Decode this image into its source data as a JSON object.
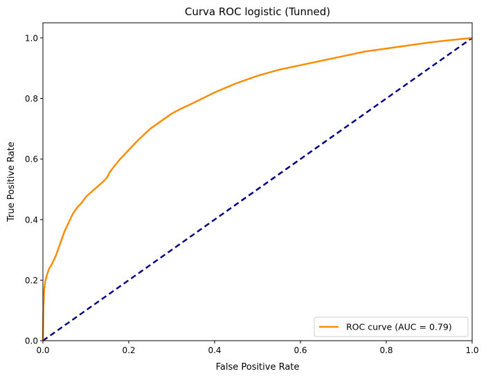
{
  "chart_data": {
    "type": "line",
    "title": "Curva ROC logistic (Tunned)",
    "xlabel": "False Positive Rate",
    "ylabel": "True Positive Rate",
    "xlim": [
      0.0,
      1.0
    ],
    "ylim": [
      0.0,
      1.05
    ],
    "xticks": [
      "0.0",
      "0.2",
      "0.4",
      "0.6",
      "0.8",
      "1.0"
    ],
    "yticks": [
      "0.0",
      "0.2",
      "0.4",
      "0.6",
      "0.8",
      "1.0"
    ],
    "grid": false,
    "legend_position": "lower-right",
    "series": [
      {
        "name": "ROC curve (AUC = 0.79)",
        "color": "#ff8c00",
        "style": "solid",
        "x": [
          0.0,
          0.001,
          0.003,
          0.006,
          0.01,
          0.015,
          0.02,
          0.03,
          0.04,
          0.05,
          0.06,
          0.07,
          0.08,
          0.09,
          0.1,
          0.12,
          0.14,
          0.15,
          0.155,
          0.16,
          0.18,
          0.2,
          0.22,
          0.25,
          0.28,
          0.3,
          0.32,
          0.35,
          0.4,
          0.45,
          0.5,
          0.55,
          0.6,
          0.65,
          0.7,
          0.75,
          0.8,
          0.85,
          0.9,
          0.95,
          1.0
        ],
        "y": [
          0.0,
          0.1,
          0.17,
          0.2,
          0.22,
          0.24,
          0.25,
          0.28,
          0.32,
          0.36,
          0.39,
          0.42,
          0.44,
          0.455,
          0.475,
          0.5,
          0.525,
          0.54,
          0.555,
          0.565,
          0.6,
          0.63,
          0.66,
          0.7,
          0.73,
          0.75,
          0.765,
          0.785,
          0.82,
          0.85,
          0.875,
          0.895,
          0.91,
          0.925,
          0.94,
          0.955,
          0.965,
          0.975,
          0.985,
          0.993,
          1.0
        ]
      },
      {
        "name": "",
        "color": "#000080",
        "style": "dashed",
        "x": [
          0.0,
          1.0
        ],
        "y": [
          0.0,
          1.0
        ]
      }
    ]
  }
}
